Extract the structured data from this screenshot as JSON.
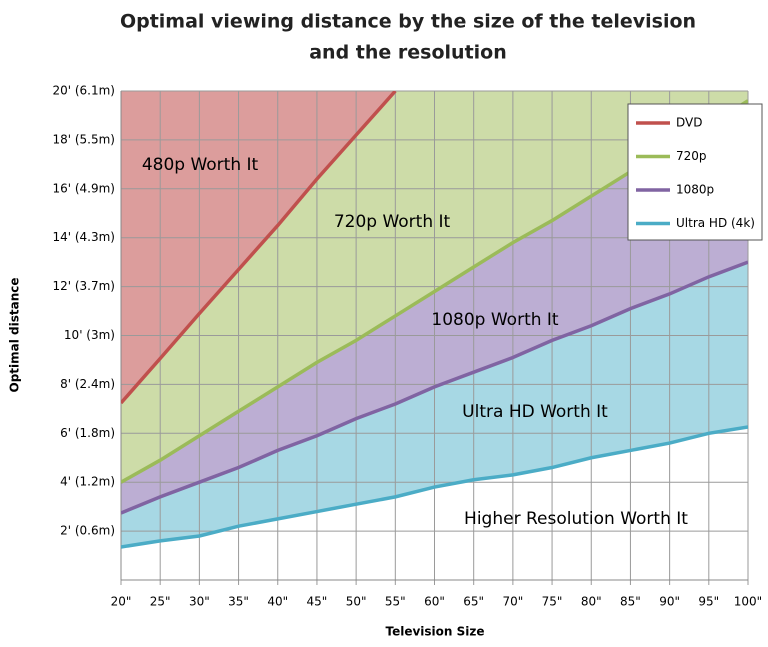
{
  "chart_data": {
    "type": "line",
    "title": "Optimal viewing distance by the size of the television",
    "subtitle": "and the resolution",
    "x_label": "Television Size",
    "y_label": "Optimal distance",
    "x": [
      20,
      25,
      30,
      35,
      40,
      45,
      50,
      55,
      60,
      65,
      70,
      75,
      80,
      85,
      90,
      95,
      100
    ],
    "series": [
      {
        "name": "DVD",
        "color": "#c0504d",
        "fill": "#dc9d9c",
        "values": [
          7.24,
          9.06,
          10.9,
          12.7,
          14.5,
          16.4,
          18.2,
          20.0,
          null,
          null,
          null,
          null,
          null,
          null,
          null,
          null,
          null
        ]
      },
      {
        "name": "720p",
        "color": "#9bbb59",
        "fill": "#cddca8",
        "values": [
          4.0,
          4.9,
          5.9,
          6.9,
          7.9,
          8.9,
          9.8,
          10.8,
          11.8,
          12.8,
          13.8,
          14.7,
          15.7,
          16.7,
          17.7,
          18.6,
          19.6
        ]
      },
      {
        "name": "1080p",
        "color": "#8064a2",
        "fill": "#bcaed3",
        "values": [
          2.74,
          3.4,
          4.0,
          4.6,
          5.3,
          5.9,
          6.6,
          7.2,
          7.9,
          8.5,
          9.1,
          9.8,
          10.4,
          11.1,
          11.7,
          12.4,
          13.0
        ]
      },
      {
        "name": "Ultra HD (4k)",
        "color": "#4bacc6",
        "fill": "#a7d8e4",
        "values": [
          1.35,
          1.6,
          1.8,
          2.2,
          2.5,
          2.8,
          3.1,
          3.4,
          3.8,
          4.1,
          4.3,
          4.6,
          5.0,
          5.3,
          5.6,
          6.0,
          6.26
        ]
      }
    ],
    "annotations": [
      "480p Worth It",
      "720p Worth It",
      "1080p Worth It",
      "Ultra HD Worth It",
      "Higher Resolution Worth It"
    ],
    "xlim": [
      20,
      100
    ],
    "ylim": [
      0,
      20
    ],
    "xticks": [
      {
        "value": 20,
        "label": "20\""
      },
      {
        "value": 25,
        "label": "25\""
      },
      {
        "value": 30,
        "label": "30\""
      },
      {
        "value": 35,
        "label": "35\""
      },
      {
        "value": 40,
        "label": "40\""
      },
      {
        "value": 45,
        "label": "45\""
      },
      {
        "value": 50,
        "label": "50\""
      },
      {
        "value": 55,
        "label": "55\""
      },
      {
        "value": 60,
        "label": "60\""
      },
      {
        "value": 65,
        "label": "65\""
      },
      {
        "value": 70,
        "label": "70\""
      },
      {
        "value": 75,
        "label": "75\""
      },
      {
        "value": 80,
        "label": "80\""
      },
      {
        "value": 85,
        "label": "85\""
      },
      {
        "value": 90,
        "label": "90\""
      },
      {
        "value": 95,
        "label": "95\""
      },
      {
        "value": 100,
        "label": "100\""
      }
    ],
    "yticks": [
      {
        "value": 2,
        "label": "2' (0.6m)"
      },
      {
        "value": 4,
        "label": "4' (1.2m)"
      },
      {
        "value": 6,
        "label": "6' (1.8m)"
      },
      {
        "value": 8,
        "label": "8' (2.4m)"
      },
      {
        "value": 10,
        "label": "10' (3m)"
      },
      {
        "value": 12,
        "label": "12' (3.7m)"
      },
      {
        "value": 14,
        "label": "14' (4.3m)"
      },
      {
        "value": 16,
        "label": "16' (4.9m)"
      },
      {
        "value": 18,
        "label": "18' (5.5m)"
      },
      {
        "value": 20,
        "label": "20' (6.1m)"
      }
    ],
    "grid": true
  }
}
